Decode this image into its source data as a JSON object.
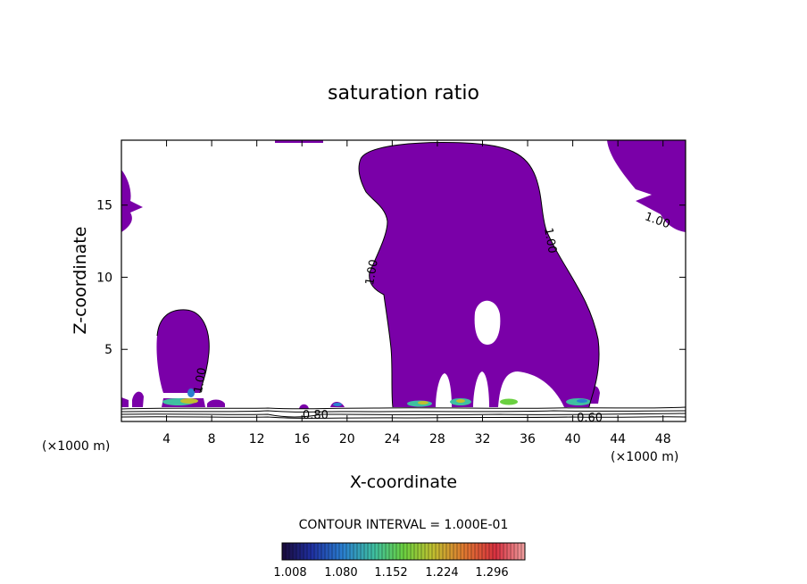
{
  "chart_data": {
    "type": "contour",
    "title": "saturation ratio",
    "xlabel": "X-coordinate",
    "ylabel": "Z-coordinate",
    "x_unit": "(×1000 m)",
    "x_unit_right": "(×1000 m)",
    "xlim": [
      0,
      50
    ],
    "ylim": [
      0,
      19.5
    ],
    "x_ticks": [
      4,
      8,
      12,
      16,
      20,
      24,
      28,
      32,
      36,
      40,
      44,
      48
    ],
    "y_ticks": [
      5,
      10,
      15
    ],
    "contour_interval_text": "CONTOUR INTERVAL = 1.000E-01",
    "contour_labels": [
      {
        "text": "1.00",
        "x": 7.3,
        "z": 2.8
      },
      {
        "text": "1.00",
        "x": 22.5,
        "z": 10.3
      },
      {
        "text": "1.00",
        "x": 37.7,
        "z": 12.5
      },
      {
        "text": "1.00",
        "x": 47.4,
        "z": 13.7
      },
      {
        "text": "0.80",
        "x": 17.2,
        "z": 0.2
      },
      {
        "text": "0.60",
        "x": 41.5,
        "z": 0.0
      }
    ],
    "colorbar": {
      "ticks": [
        "1.008",
        "1.080",
        "1.152",
        "1.224",
        "1.296"
      ],
      "colors": [
        "#1a0a3a",
        "#1f2fa0",
        "#2a7fd0",
        "#3fc0a0",
        "#6ad040",
        "#c0c030",
        "#e07830",
        "#d83040",
        "#f0a0a0"
      ]
    },
    "supersaturated_fill": "#7a00a8"
  }
}
